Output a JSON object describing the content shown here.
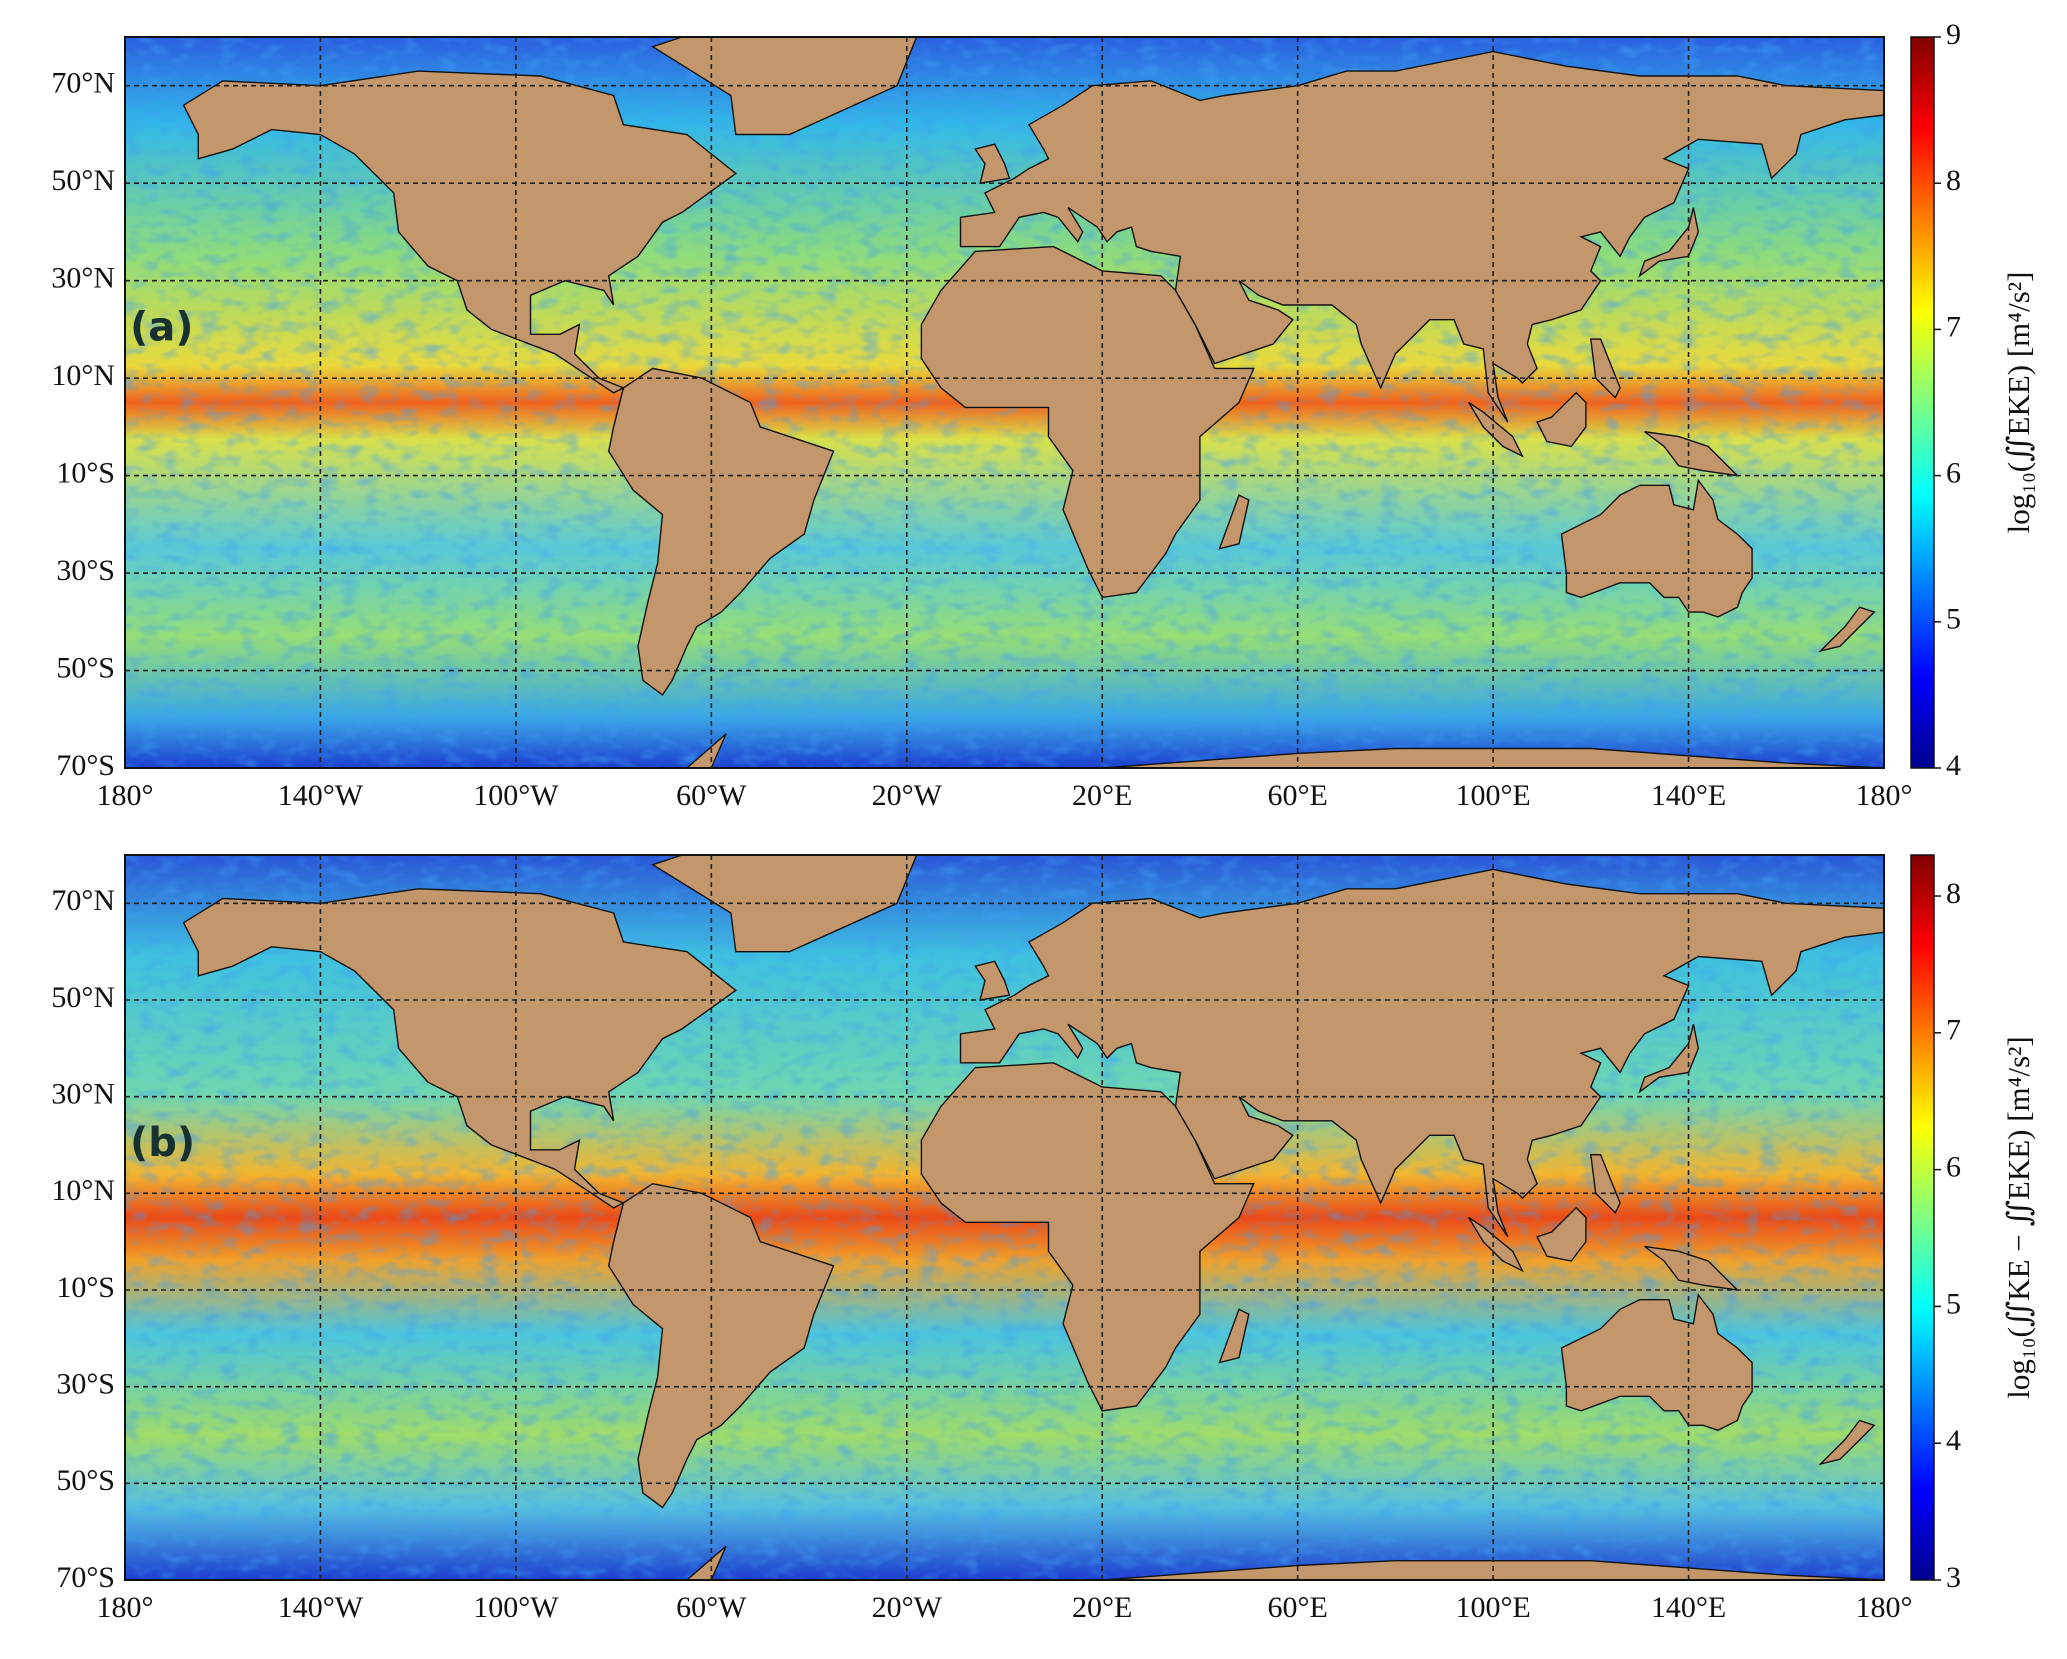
{
  "map": {
    "xlim": [
      -180,
      180
    ],
    "ylim": [
      -70,
      80
    ],
    "xticks": [
      {
        "value": -180,
        "label": "180°"
      },
      {
        "value": -140,
        "label": "140°W"
      },
      {
        "value": -100,
        "label": "100°W"
      },
      {
        "value": -60,
        "label": "60°W"
      },
      {
        "value": -20,
        "label": "20°W"
      },
      {
        "value": 20,
        "label": "20°E"
      },
      {
        "value": 60,
        "label": "60°E"
      },
      {
        "value": 100,
        "label": "100°E"
      },
      {
        "value": 140,
        "label": "140°E"
      },
      {
        "value": 180,
        "label": "180°"
      }
    ],
    "yticks": [
      {
        "value": 70,
        "label": "70°N"
      },
      {
        "value": 50,
        "label": "50°N"
      },
      {
        "value": 30,
        "label": "30°N"
      },
      {
        "value": 10,
        "label": "10°N"
      },
      {
        "value": -10,
        "label": "10°S"
      },
      {
        "value": -30,
        "label": "30°S"
      },
      {
        "value": -50,
        "label": "50°S"
      },
      {
        "value": -70,
        "label": "70°S"
      }
    ]
  },
  "panels": [
    {
      "label": "(a)",
      "colorbar": {
        "label": "log₁₀(∬EKE)  [m⁴/s²]",
        "lim": [
          4,
          9
        ],
        "ticks": [
          4,
          5,
          6,
          7,
          8,
          9
        ]
      }
    },
    {
      "label": "(b)",
      "colorbar": {
        "label": "log₁₀(∬KE − ∬EKE)  [m⁴/s²]",
        "lim": [
          3,
          8.3
        ],
        "ticks": [
          3,
          4,
          5,
          6,
          7,
          8
        ]
      }
    }
  ]
}
